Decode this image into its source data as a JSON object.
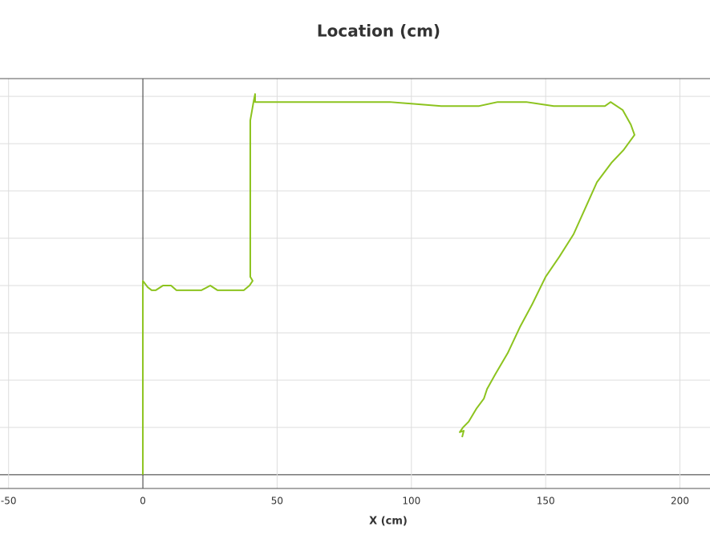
{
  "chart_data": {
    "type": "line",
    "title": "Location (cm)",
    "x_label": "X (cm)",
    "x": [
      0,
      0,
      1.8,
      3.3,
      4.8,
      7.5,
      10.5,
      12.5,
      21.8,
      25.1,
      27.8,
      37.6,
      39.7,
      40.9,
      40.0,
      40.0,
      41.2,
      41.8,
      41.8,
      92.0,
      111.1,
      125.2,
      132.1,
      142.8,
      153.0,
      172.1,
      174.2,
      178.7,
      181.7,
      183.1,
      179.0,
      174.5,
      169.1,
      160.4,
      155.1,
      150.0,
      144.9,
      140.4,
      135.9,
      131.2,
      128.2,
      127.0,
      124.3,
      121.3,
      119.2,
      118.0,
      119.5,
      118.9
    ],
    "values": [
      0,
      82.0,
      79.3,
      78.0,
      78.0,
      80.0,
      80.0,
      78.0,
      78.0,
      80.0,
      78.0,
      78.0,
      80.0,
      82.0,
      83.7,
      149.8,
      157.6,
      161.0,
      157.6,
      157.6,
      155.9,
      155.9,
      157.6,
      157.6,
      155.9,
      155.9,
      157.6,
      154.2,
      148.1,
      143.7,
      137.3,
      131.9,
      123.7,
      101.7,
      92.2,
      83.7,
      71.9,
      62.4,
      51.5,
      42.4,
      36.3,
      32.2,
      28.1,
      22.4,
      20.0,
      18.0,
      18.6,
      15.9
    ],
    "color": "#8cc31e",
    "xlim": [
      -53.2,
      211.2
    ],
    "xticks": [
      -50,
      0,
      50,
      100,
      150,
      200
    ],
    "ylim": [
      -5.8,
      167.5
    ],
    "yticks": [
      0,
      20,
      40,
      60,
      80,
      100,
      120,
      140,
      160
    ],
    "grid": true
  }
}
